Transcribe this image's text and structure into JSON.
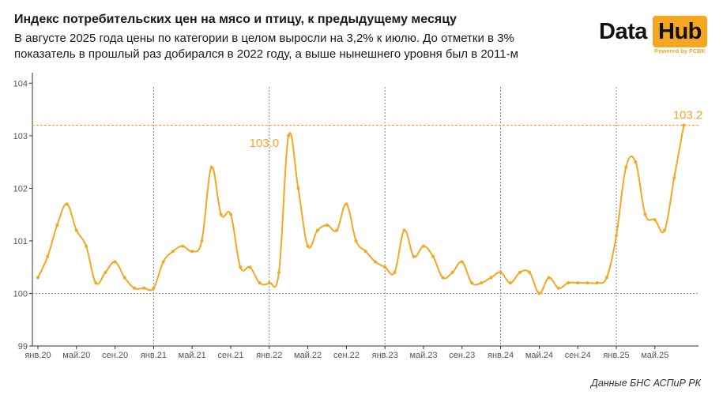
{
  "header": {
    "title": "Индекс потребительских цен на мясо и птицу, к предыдущему месяцу",
    "subtitle": "В августе 2025 года цены по категории в целом выросли на 3,2% к июлю. До отметки в 3% показатель в прошлый раз добирался в 2022 году, а выше нынешнего уровня был в 2011-м"
  },
  "logo": {
    "word1": "Data",
    "word2": "Hub",
    "powered": "Powered by FCBK"
  },
  "source": "Данные БНС АСПиР РК",
  "colors": {
    "line": "#f5a623",
    "reference": "#f5a623",
    "baseline": "#999999",
    "year_separator": "#888888",
    "axis": "#333333"
  },
  "chart_data": {
    "type": "line",
    "y_ticks": [
      "99",
      "100",
      "101",
      "102",
      "103",
      "104"
    ],
    "ylim": [
      99,
      104.2
    ],
    "x_tick_labels": [
      "янв.20",
      "май.20",
      "сен.20",
      "янв.21",
      "май.21",
      "сен.21",
      "янв.22",
      "май.22",
      "сен.22",
      "янв.23",
      "май.23",
      "сен.23",
      "янв.24",
      "май.24",
      "сен.24",
      "янв.25",
      "май.25"
    ],
    "x_tick_month_index": [
      0,
      4,
      8,
      12,
      16,
      20,
      24,
      28,
      32,
      36,
      40,
      44,
      48,
      52,
      56,
      60,
      64
    ],
    "year_separator_month_index": [
      12,
      24,
      36,
      48,
      60
    ],
    "baseline": 100,
    "reference_line": 103.2,
    "annotations": [
      {
        "month_index": 26,
        "text": "103.0"
      },
      {
        "month_index": 67,
        "text": "103.2"
      }
    ],
    "series": [
      {
        "values": [
          100.3,
          100.7,
          101.3,
          101.7,
          101.2,
          100.9,
          100.2,
          100.4,
          100.6,
          100.3,
          100.1,
          100.1,
          100.1,
          100.6,
          100.8,
          100.9,
          100.8,
          101.0,
          102.4,
          101.5,
          101.5,
          100.5,
          100.5,
          100.2,
          100.2,
          100.4,
          103.0,
          102.0,
          100.9,
          101.2,
          101.3,
          101.2,
          101.7,
          101.0,
          100.8,
          100.6,
          100.5,
          100.4,
          101.2,
          100.7,
          100.9,
          100.7,
          100.3,
          100.4,
          100.6,
          100.2,
          100.2,
          100.3,
          100.4,
          100.2,
          100.4,
          100.4,
          100.0,
          100.3,
          100.1,
          100.2,
          100.2,
          100.2,
          100.2,
          100.3,
          101.1,
          102.4,
          102.5,
          101.5,
          101.4,
          101.2,
          102.2,
          103.2
        ]
      }
    ]
  }
}
